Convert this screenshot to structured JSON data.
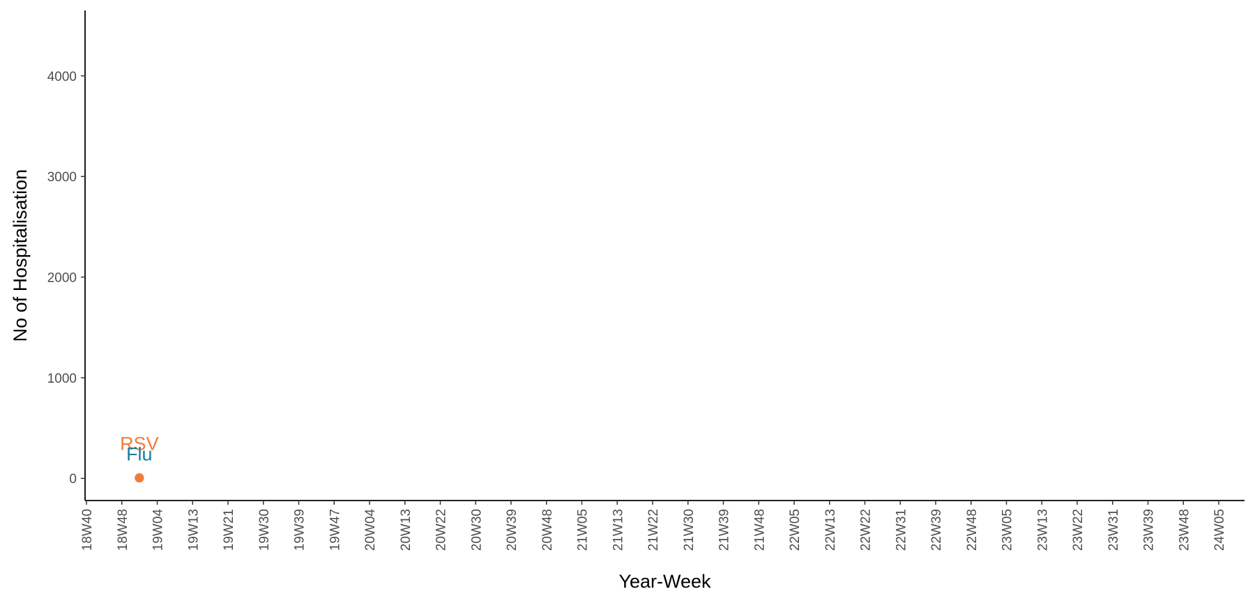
{
  "chart_data": {
    "type": "scatter",
    "title": "",
    "xlabel": "Year-Week",
    "ylabel": "No of Hospitalisation",
    "x_tick_labels": [
      "18W40",
      "18W48",
      "19W04",
      "19W13",
      "19W21",
      "19W30",
      "19W39",
      "19W47",
      "20W04",
      "20W13",
      "20W22",
      "20W30",
      "20W39",
      "20W48",
      "21W05",
      "21W13",
      "21W22",
      "21W30",
      "21W39",
      "21W48",
      "22W05",
      "22W13",
      "22W22",
      "22W31",
      "22W39",
      "22W48",
      "23W05",
      "23W13",
      "23W22",
      "23W31",
      "23W39",
      "23W48",
      "24W05"
    ],
    "y_ticks": [
      0,
      1000,
      2000,
      3000,
      4000
    ],
    "ylim": [
      -220,
      4650
    ],
    "grid": false,
    "legend": "none",
    "series": [
      {
        "name": "RSV",
        "color": "#F47B37",
        "points": [
          {
            "x": "19W01",
            "y": 5
          }
        ]
      },
      {
        "name": "Flu",
        "color": "#1B7C9C",
        "points": [
          {
            "x": "19W01",
            "y": 5
          }
        ]
      }
    ]
  }
}
